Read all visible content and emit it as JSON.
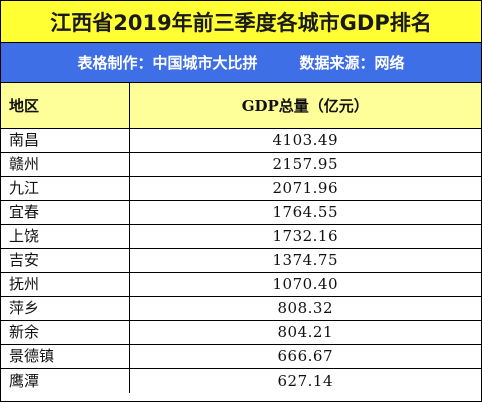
{
  "title": "江西省2019年前三季度各城市GDP排名",
  "source": {
    "maker": "表格制作：中国城市大比拼",
    "origin": "数据来源：网络"
  },
  "colors": {
    "title_bg": "#ffff33",
    "source_bg": "#3f6fe6",
    "header_bg": "#ffff99"
  },
  "table": {
    "headers": {
      "region": "地区",
      "gdp": "GDP总量（亿元）"
    },
    "rows": [
      {
        "city": "南昌",
        "gdp": "4103.49"
      },
      {
        "city": "赣州",
        "gdp": "2157.95"
      },
      {
        "city": "九江",
        "gdp": "2071.96"
      },
      {
        "city": "宜春",
        "gdp": "1764.55"
      },
      {
        "city": "上饶",
        "gdp": "1732.16"
      },
      {
        "city": "吉安",
        "gdp": "1374.75"
      },
      {
        "city": "抚州",
        "gdp": "1070.40"
      },
      {
        "city": "萍乡",
        "gdp": "808.32"
      },
      {
        "city": "新余",
        "gdp": "804.21"
      },
      {
        "city": "景德镇",
        "gdp": "666.67"
      },
      {
        "city": "鹰潭",
        "gdp": "627.14"
      }
    ]
  }
}
